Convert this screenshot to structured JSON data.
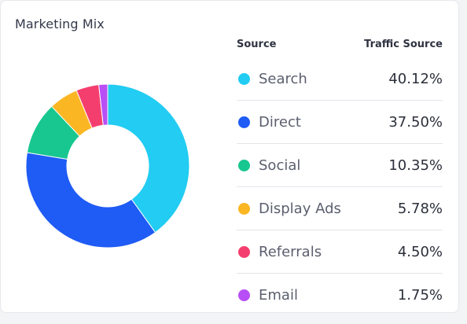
{
  "chart_data": {
    "type": "pie",
    "title": "Marketing Mix",
    "legend_headers": {
      "source": "Source",
      "traffic": "Traffic Source"
    },
    "categories": [
      "Search",
      "Direct",
      "Social",
      "Display Ads",
      "Referrals",
      "Email"
    ],
    "values": [
      40.12,
      37.5,
      10.35,
      5.78,
      4.5,
      1.75
    ],
    "value_labels": [
      "40.12%",
      "37.50%",
      "10.35%",
      "5.78%",
      "4.50%",
      "1.75%"
    ],
    "colors": [
      "#22ccf2",
      "#1f5bf5",
      "#17c78f",
      "#fbb623",
      "#f43f6e",
      "#b84ef6"
    ],
    "style": "donut",
    "legend_position": "right"
  }
}
